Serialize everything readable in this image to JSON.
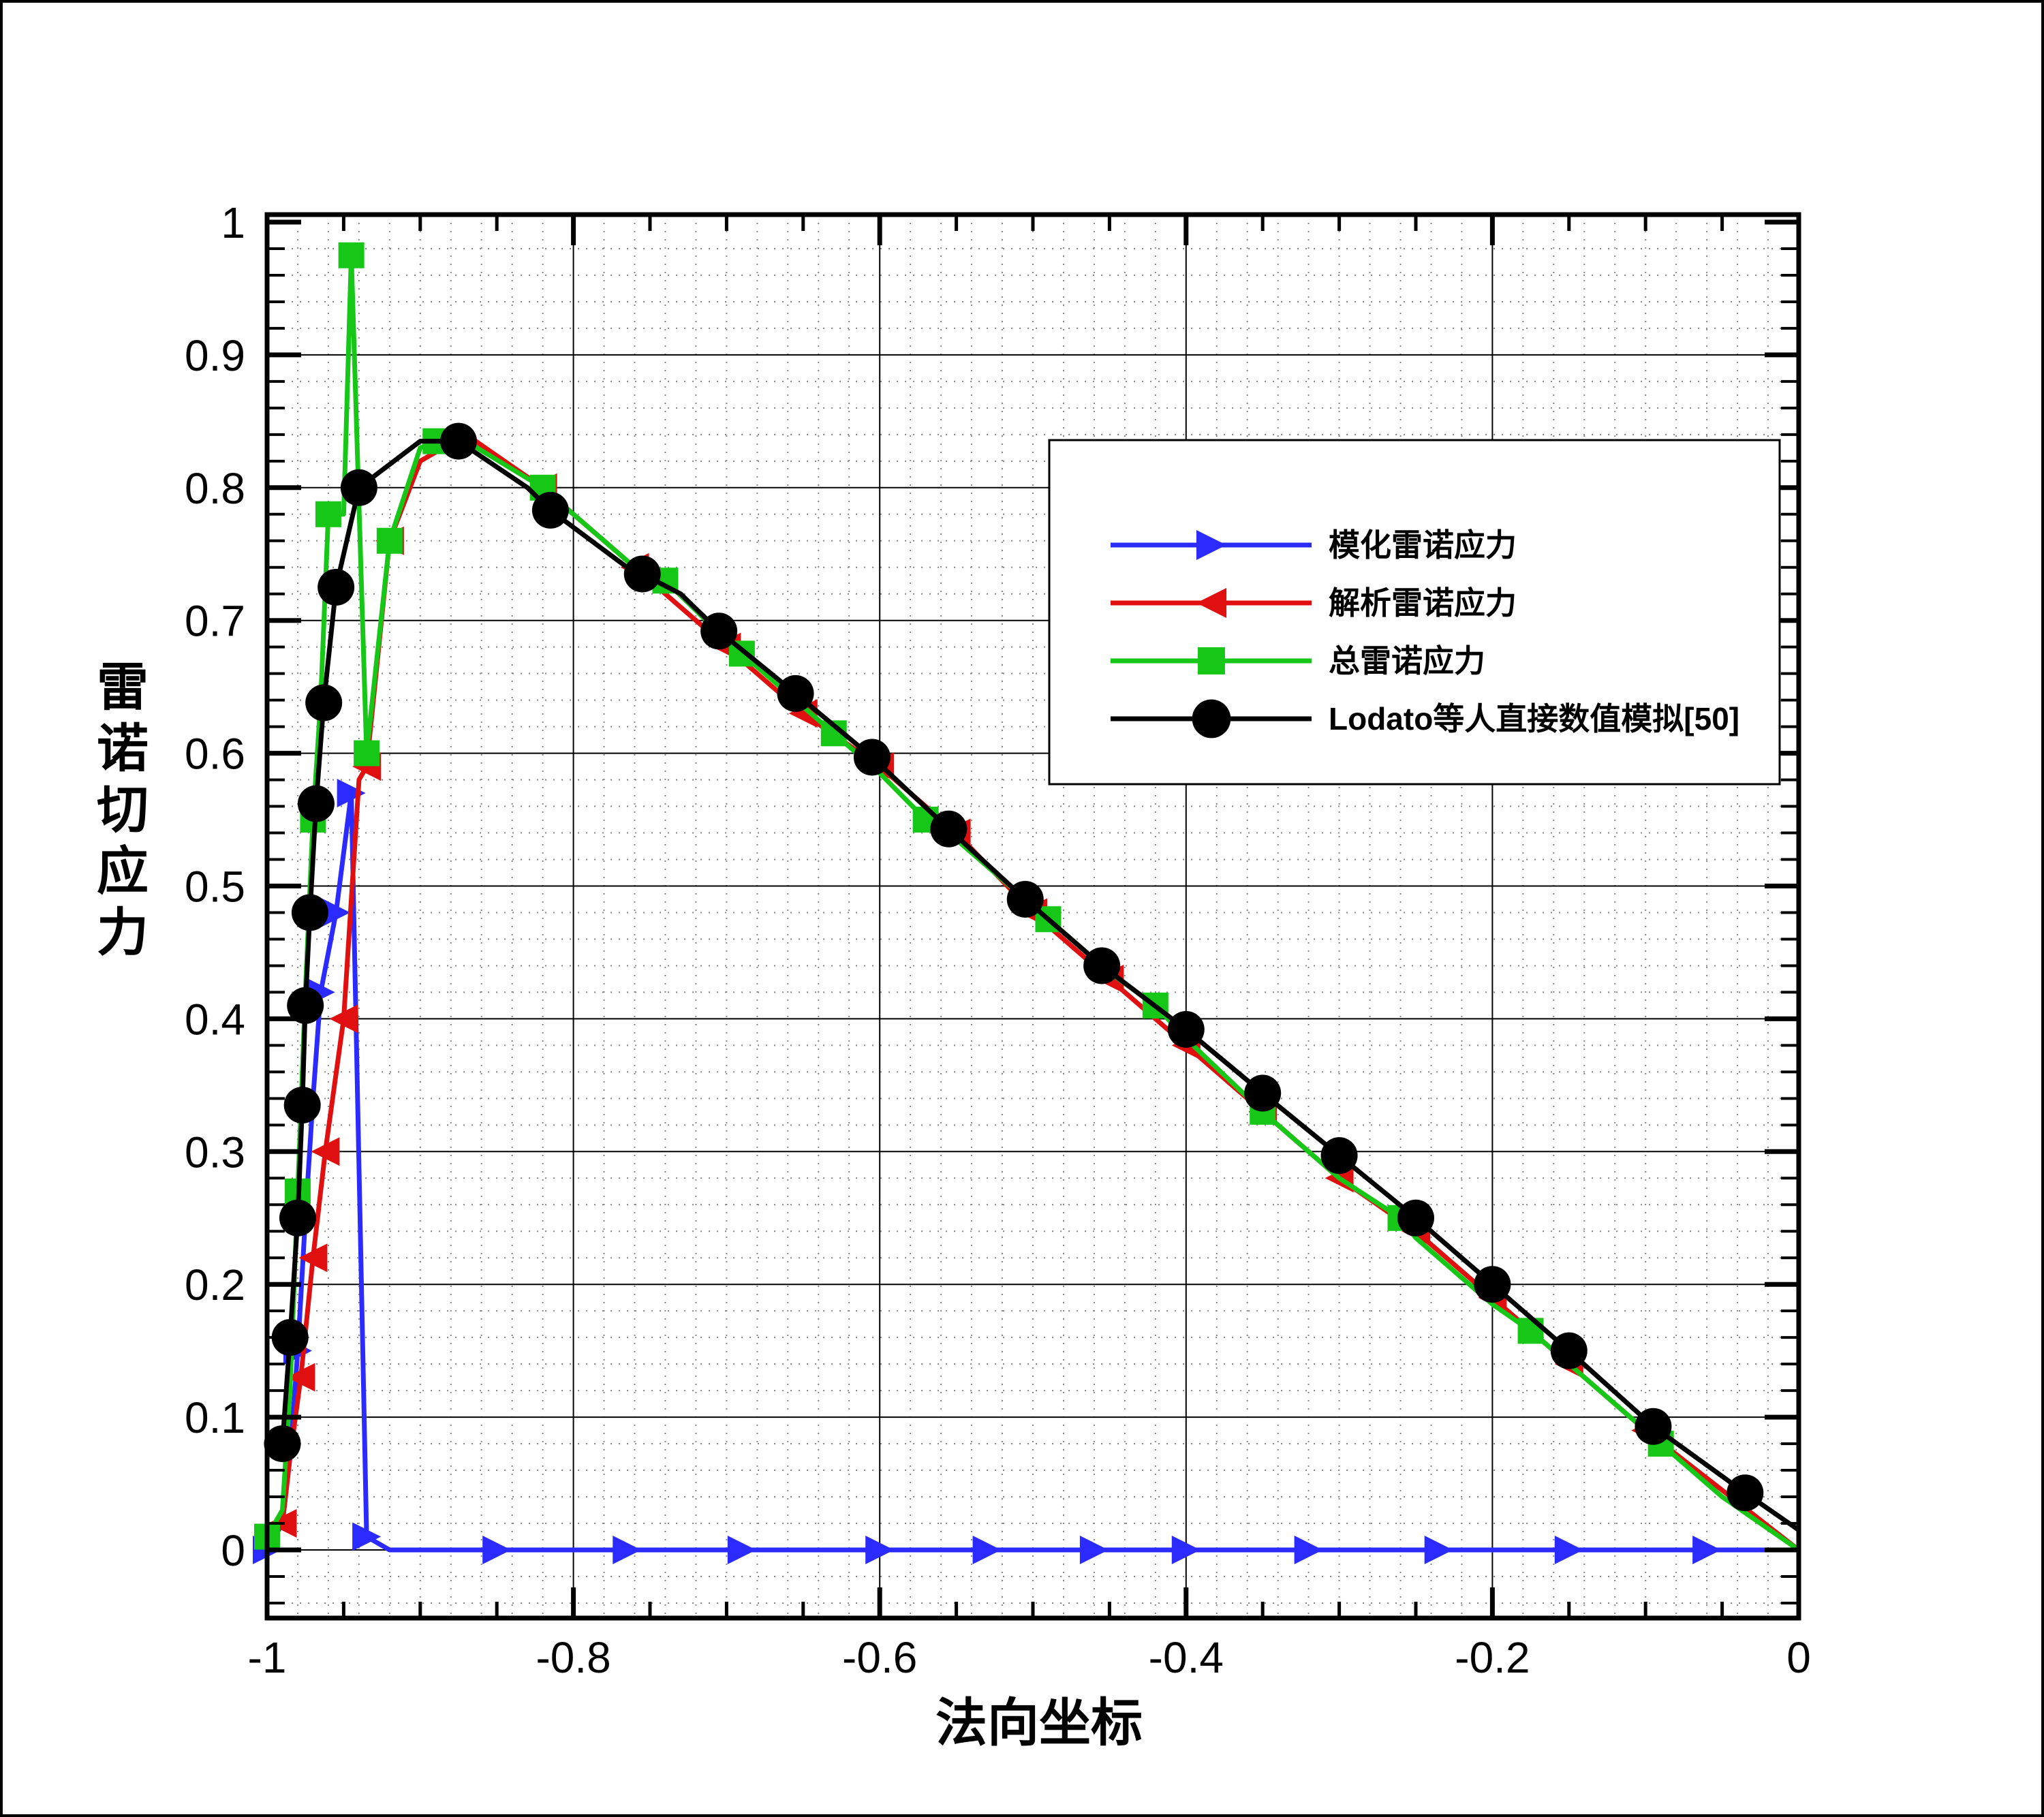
{
  "chart_data": {
    "type": "line",
    "xlabel": "法向坐标",
    "ylabel": "雷诺切应力",
    "xlim": [
      -1,
      0
    ],
    "ylim": [
      -0.05,
      1
    ],
    "xticks": [
      "-1",
      "-0.8",
      "-0.6",
      "-0.4",
      "-0.2",
      "0"
    ],
    "yticks": [
      "0",
      "0.1",
      "0.2",
      "0.3",
      "0.4",
      "0.5",
      "0.6",
      "0.7",
      "0.8",
      "0.9",
      "1"
    ],
    "grid": true,
    "legend_position": "right",
    "series": [
      {
        "name": "模化雷诺应力",
        "color": "#2b2bff",
        "marker": "triangle-right",
        "x": [
          -1.0,
          -0.99,
          -0.985,
          -0.98,
          -0.975,
          -0.97,
          -0.965,
          -0.955,
          -0.945,
          -0.935,
          -0.92,
          -0.9,
          -0.85,
          -0.765,
          -0.69,
          -0.6,
          -0.53,
          -0.46,
          -0.4,
          -0.32,
          -0.235,
          -0.15,
          -0.06,
          0.0
        ],
        "y": [
          0.0,
          0.02,
          0.07,
          0.15,
          0.25,
          0.34,
          0.42,
          0.48,
          0.57,
          0.01,
          0.0,
          0.0,
          0.0,
          0.0,
          0.0,
          0.0,
          0.0,
          0.0,
          0.0,
          0.0,
          0.0,
          0.0,
          0.0,
          0.0
        ],
        "marker_indices": [
          0,
          3,
          6,
          7,
          8,
          9,
          12,
          13,
          14,
          15,
          16,
          17,
          18,
          19,
          20,
          21,
          22
        ]
      },
      {
        "name": "解析雷诺应力",
        "color": "#e01010",
        "marker": "triangle-left",
        "x": [
          -1.0,
          -0.99,
          -0.985,
          -0.978,
          -0.97,
          -0.962,
          -0.95,
          -0.94,
          -0.935,
          -0.92,
          -0.9,
          -0.87,
          -0.82,
          -0.76,
          -0.7,
          -0.65,
          -0.6,
          -0.55,
          -0.5,
          -0.45,
          -0.4,
          -0.35,
          -0.3,
          -0.25,
          -0.2,
          -0.15,
          -0.1,
          -0.05,
          0.0
        ],
        "y": [
          0.005,
          0.02,
          0.07,
          0.13,
          0.22,
          0.3,
          0.4,
          0.58,
          0.59,
          0.76,
          0.82,
          0.84,
          0.8,
          0.74,
          0.68,
          0.63,
          0.59,
          0.54,
          0.48,
          0.43,
          0.38,
          0.33,
          0.28,
          0.24,
          0.19,
          0.14,
          0.09,
          0.045,
          0.0
        ],
        "marker_indices": [
          1,
          3,
          4,
          5,
          6,
          8,
          9,
          12,
          13,
          14,
          15,
          16,
          17,
          18,
          19,
          20,
          21,
          22,
          23,
          24,
          25,
          26
        ]
      },
      {
        "name": "总雷诺应力",
        "color": "#17c717",
        "marker": "square",
        "x": [
          -1.0,
          -0.99,
          -0.985,
          -0.98,
          -0.975,
          -0.97,
          -0.965,
          -0.96,
          -0.95,
          -0.945,
          -0.935,
          -0.92,
          -0.9,
          -0.89,
          -0.87,
          -0.82,
          -0.76,
          -0.74,
          -0.7,
          -0.69,
          -0.65,
          -0.63,
          -0.6,
          -0.57,
          -0.55,
          -0.5,
          -0.49,
          -0.45,
          -0.42,
          -0.4,
          -0.35,
          -0.3,
          -0.26,
          -0.25,
          -0.2,
          -0.175,
          -0.15,
          -0.1,
          -0.09,
          -0.05,
          0.0
        ],
        "y": [
          0.01,
          0.03,
          0.12,
          0.27,
          0.42,
          0.55,
          0.64,
          0.78,
          0.78,
          0.975,
          0.6,
          0.76,
          0.83,
          0.835,
          0.835,
          0.8,
          0.74,
          0.73,
          0.685,
          0.675,
          0.635,
          0.615,
          0.585,
          0.55,
          0.535,
          0.485,
          0.475,
          0.435,
          0.41,
          0.385,
          0.33,
          0.28,
          0.25,
          0.235,
          0.185,
          0.165,
          0.14,
          0.09,
          0.08,
          0.04,
          0.0
        ],
        "marker_indices": [
          0,
          3,
          5,
          7,
          9,
          10,
          11,
          13,
          15,
          17,
          19,
          21,
          23,
          26,
          28,
          30,
          32,
          35,
          38
        ]
      },
      {
        "name": "Lodato等人直接数值模拟[50]",
        "color": "#000000",
        "marker": "circle",
        "x": [
          -0.99,
          -0.985,
          -0.98,
          -0.977,
          -0.975,
          -0.972,
          -0.968,
          -0.963,
          -0.955,
          -0.94,
          -0.9,
          -0.875,
          -0.83,
          -0.815,
          -0.765,
          -0.755,
          -0.73,
          -0.705,
          -0.655,
          -0.605,
          -0.555,
          -0.505,
          -0.455,
          -0.4,
          -0.35,
          -0.3,
          -0.25,
          -0.2,
          -0.15,
          -0.095,
          -0.035,
          0.0
        ],
        "y": [
          0.08,
          0.16,
          0.25,
          0.335,
          0.41,
          0.48,
          0.562,
          0.638,
          0.725,
          0.8,
          0.835,
          0.835,
          0.8,
          0.783,
          0.74,
          0.735,
          0.72,
          0.692,
          0.645,
          0.597,
          0.543,
          0.49,
          0.44,
          0.392,
          0.344,
          0.297,
          0.25,
          0.2,
          0.15,
          0.093,
          0.043,
          0.015
        ],
        "marker_indices": [
          0,
          1,
          2,
          3,
          4,
          5,
          6,
          7,
          8,
          9,
          11,
          13,
          15,
          17,
          18,
          19,
          20,
          21,
          22,
          23,
          24,
          25,
          26,
          27,
          28,
          29,
          30
        ]
      }
    ]
  }
}
